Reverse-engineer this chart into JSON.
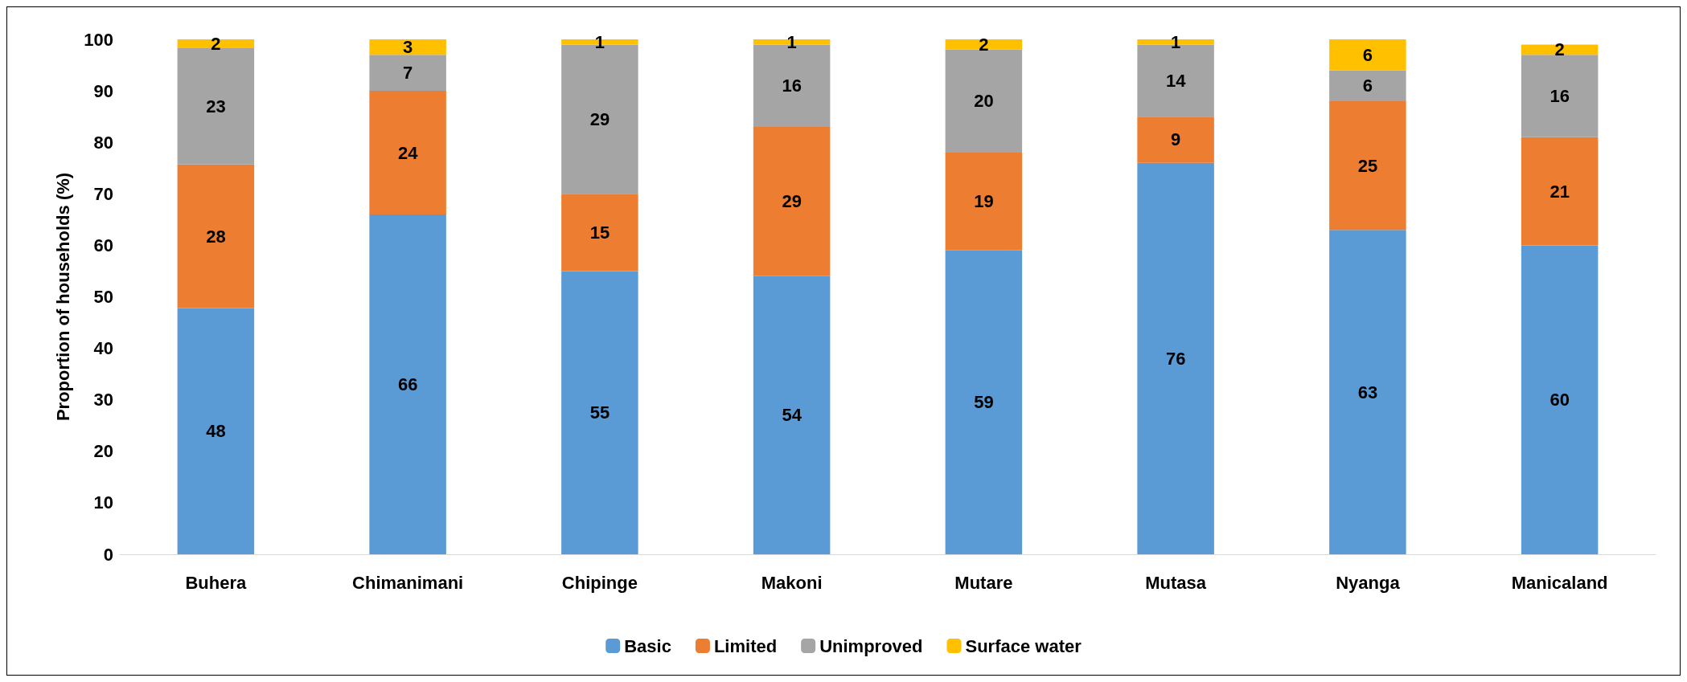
{
  "chart_data": {
    "type": "bar",
    "stacked": true,
    "ylabel": "Proportion of households (%)",
    "categories": [
      "Buhera",
      "Chimanimani",
      "Chipinge",
      "Makoni",
      "Mutare",
      "Mutasa",
      "Nyanga",
      "Manicaland"
    ],
    "series": [
      {
        "name": "Basic",
        "color": "#5b9bd5",
        "values": [
          47.8,
          66,
          55,
          54,
          59,
          76,
          63,
          60
        ],
        "value_labels": [
          "48",
          "66",
          "55",
          "54",
          "59",
          "76",
          "63",
          "60"
        ]
      },
      {
        "name": "Limited",
        "color": "#ed7d31",
        "values": [
          27.9,
          24,
          15,
          29,
          19,
          9,
          25,
          21
        ],
        "value_labels": [
          "28",
          "24",
          "15",
          "29",
          "19",
          "9",
          "25",
          "21"
        ]
      },
      {
        "name": "Unimproved",
        "color": "#a5a5a5",
        "values": [
          22.6,
          7,
          29,
          16,
          20,
          14,
          6,
          16
        ],
        "value_labels": [
          "23",
          "7",
          "29",
          "16",
          "20",
          "14",
          "6",
          "16"
        ]
      },
      {
        "name": "Surface water",
        "color": "#ffc000",
        "values": [
          1.7,
          3,
          1,
          1,
          2,
          1,
          6,
          2
        ],
        "value_labels": [
          "2",
          "3",
          "1",
          "1",
          "2",
          "1",
          "6",
          "2"
        ]
      }
    ],
    "ylim": [
      0,
      100
    ],
    "yticks": [
      0,
      10,
      20,
      30,
      40,
      50,
      60,
      70,
      80,
      90,
      100
    ],
    "grid": false,
    "legend": "bottom"
  }
}
